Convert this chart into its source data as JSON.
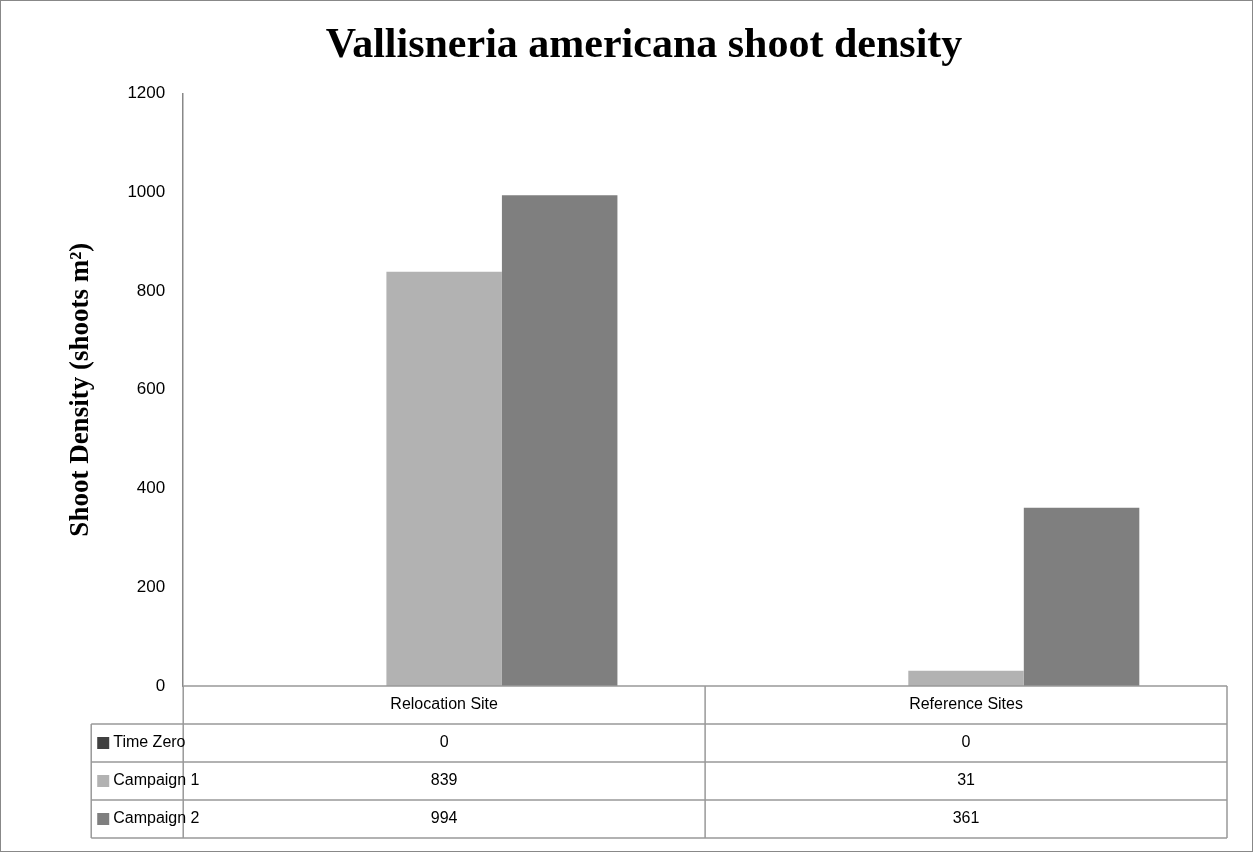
{
  "chart_data": {
    "type": "bar",
    "title": "Vallisneria americana shoot density",
    "ylabel": "Shoot Density (shoots m²)",
    "categories": [
      "Relocation Site",
      "Reference Sites"
    ],
    "series": [
      {
        "name": "Time Zero",
        "color": "#404040",
        "values": [
          0,
          0
        ]
      },
      {
        "name": "Campaign 1",
        "color": "#b2b2b2",
        "values": [
          839,
          31
        ]
      },
      {
        "name": "Campaign 2",
        "color": "#7f7f7f",
        "values": [
          994,
          361
        ]
      }
    ],
    "ylim": [
      0,
      1200
    ],
    "yticks": [
      0,
      200,
      400,
      600,
      800,
      1000,
      1200
    ],
    "grid": false,
    "legend": "bottom",
    "data_labels": true
  }
}
